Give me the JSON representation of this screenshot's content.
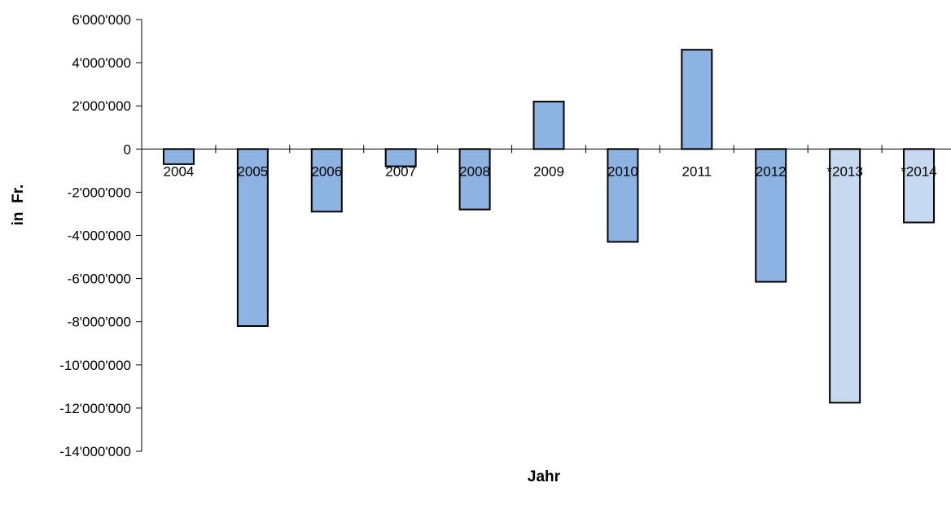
{
  "chart_data": {
    "type": "bar",
    "title": "",
    "xlabel": "Jahr",
    "ylabel": "in  Fr.",
    "ylim": [
      -14000000,
      6000000
    ],
    "ytick_step": 2000000,
    "yticks": [
      "6'000'000",
      "4'000'000",
      "2'000'000",
      "0",
      "-2'000'000",
      "-4'000'000",
      "-6'000'000",
      "-8'000'000",
      "-10'000'000",
      "-12'000'000",
      "-14'000'000"
    ],
    "categories": [
      "2004",
      "2005",
      "2006",
      "2007",
      "2008",
      "2009",
      "2010",
      "2011",
      "2012",
      "*2013",
      "*2014"
    ],
    "values": [
      -700000,
      -8200000,
      -2900000,
      -800000,
      -2800000,
      2200000,
      -4300000,
      4600000,
      -6150000,
      -11750000,
      -3400000
    ],
    "bar_colors": [
      "#8DB3E2",
      "#8DB3E2",
      "#8DB3E2",
      "#8DB3E2",
      "#8DB3E2",
      "#8DB3E2",
      "#8DB3E2",
      "#8DB3E2",
      "#8DB3E2",
      "#C6D9F1",
      "#C6D9F1"
    ],
    "bar_stroke": "#000000",
    "grid": false,
    "legend": "none"
  }
}
